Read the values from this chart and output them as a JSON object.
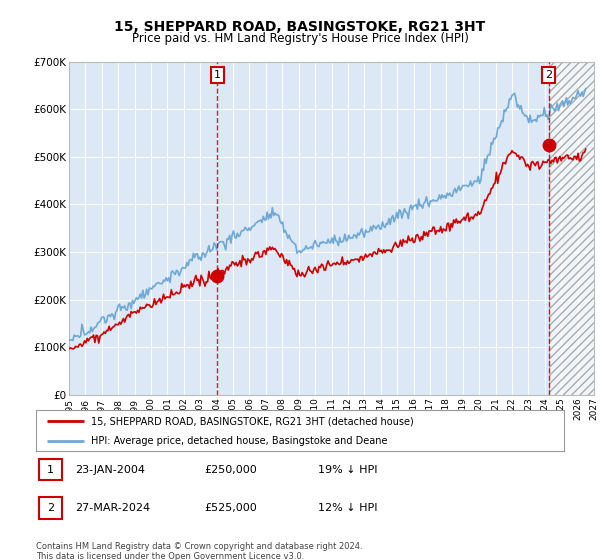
{
  "title": "15, SHEPPARD ROAD, BASINGSTOKE, RG21 3HT",
  "subtitle": "Price paid vs. HM Land Registry's House Price Index (HPI)",
  "title_fontsize": 10,
  "subtitle_fontsize": 8.5,
  "ylim": [
    0,
    700000
  ],
  "yticks": [
    0,
    100000,
    200000,
    300000,
    400000,
    500000,
    600000,
    700000
  ],
  "ytick_labels": [
    "£0",
    "£100K",
    "£200K",
    "£300K",
    "£400K",
    "£500K",
    "£600K",
    "£700K"
  ],
  "background_color": "#ffffff",
  "plot_bg_color": "#dce8f5",
  "grid_color": "#ffffff",
  "hpi_color": "#6fa8d4",
  "price_color": "#cc0000",
  "transaction1_x": 2004.05,
  "transaction1_y": 250000,
  "transaction1_label": "1",
  "transaction2_x": 2024.23,
  "transaction2_y": 525000,
  "transaction2_label": "2",
  "legend_line1": "15, SHEPPARD ROAD, BASINGSTOKE, RG21 3HT (detached house)",
  "legend_line2": "HPI: Average price, detached house, Basingstoke and Deane",
  "footnote": "Contains HM Land Registry data © Crown copyright and database right 2024.\nThis data is licensed under the Open Government Licence v3.0.",
  "table_row1": [
    "1",
    "23-JAN-2004",
    "£250,000",
    "19% ↓ HPI"
  ],
  "table_row2": [
    "2",
    "27-MAR-2024",
    "£525,000",
    "12% ↓ HPI"
  ],
  "xmin": 1995.0,
  "xmax": 2027.0,
  "future_start": 2024.25
}
